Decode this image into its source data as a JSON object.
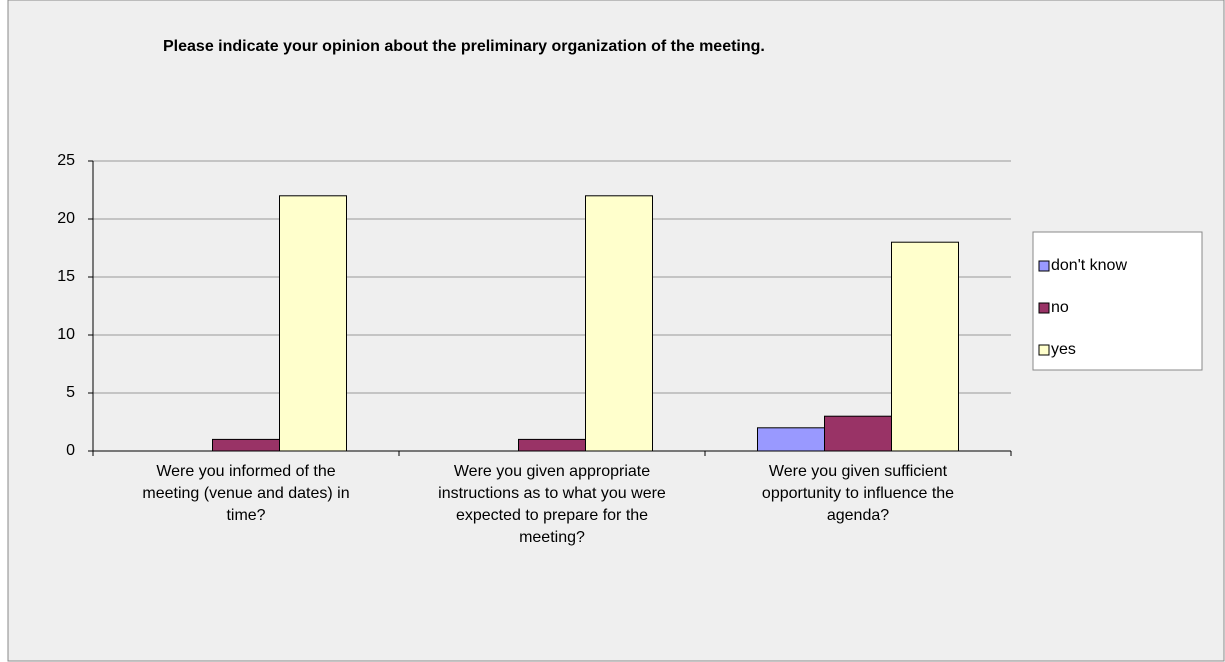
{
  "chart_data": {
    "type": "bar",
    "title": "Please indicate your opinion about the preliminary organization of the meeting.",
    "categories": [
      "Were you informed of the meeting (venue and dates) in time?",
      "Were you given appropriate instructions as to what you were expected to prepare for the meeting?",
      "Were you given sufficient opportunity to influence the agenda?"
    ],
    "series": [
      {
        "name": "don't know",
        "color": "#9999ff",
        "values": [
          0,
          0,
          2
        ]
      },
      {
        "name": "no",
        "color": "#993366",
        "values": [
          1,
          1,
          3
        ]
      },
      {
        "name": "yes",
        "color": "#ffffcc",
        "values": [
          22,
          22,
          18
        ]
      }
    ],
    "ylim": [
      0,
      25
    ],
    "yticks": [
      0,
      5,
      10,
      15,
      20,
      25
    ],
    "grid": true,
    "legend": "right"
  }
}
